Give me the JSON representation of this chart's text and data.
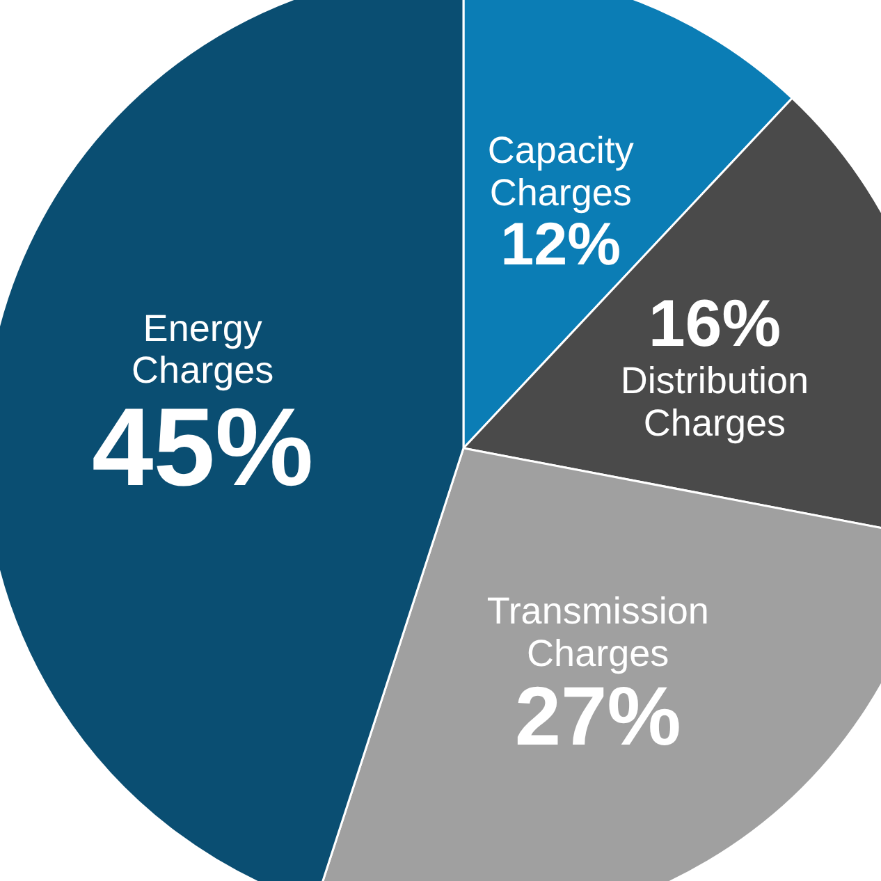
{
  "chart_data": {
    "type": "pie",
    "categories": [
      "Capacity Charges",
      "Distribution Charges",
      "Transmission Charges",
      "Energy Charges"
    ],
    "values": [
      12,
      16,
      27,
      45
    ],
    "colors": [
      "#0b7db5",
      "#4a4a4a",
      "#a0a0a0",
      "#0a4e72"
    ],
    "value_labels": [
      "12%",
      "16%",
      "27%",
      "45%"
    ]
  }
}
